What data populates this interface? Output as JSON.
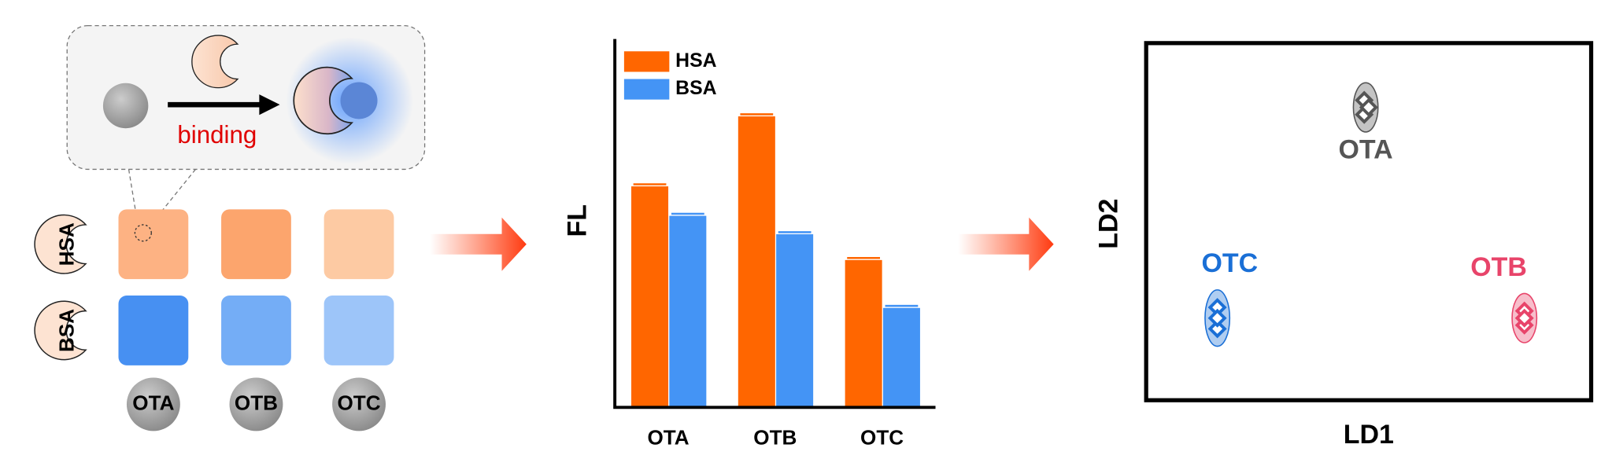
{
  "diagram": {
    "callout_label": "binding",
    "rows": [
      "HSA",
      "BSA"
    ],
    "columns": [
      "OTA",
      "OTB",
      "OTC"
    ]
  },
  "chart_data": [
    {
      "type": "bar",
      "ylabel": "FL",
      "categories": [
        "OTA",
        "OTB",
        "OTC"
      ],
      "ylim": [
        0,
        100
      ],
      "series": [
        {
          "name": "HSA",
          "color": "#ff6600",
          "values": [
            60,
            79,
            40
          ]
        },
        {
          "name": "BSA",
          "color": "#4494f5",
          "values": [
            52,
            47,
            27
          ]
        }
      ],
      "legend": "upper left"
    },
    {
      "type": "scatter",
      "xlabel": "LD1",
      "ylabel": "LD2",
      "xlim": [
        0,
        100
      ],
      "ylim": [
        0,
        100
      ],
      "series": [
        {
          "name": "OTA",
          "color": "#555555",
          "x": [
            49,
            49,
            50
          ],
          "y": [
            84,
            80,
            82
          ]
        },
        {
          "name": "OTB",
          "color": "#e8446a",
          "x": [
            85,
            85,
            85
          ],
          "y": [
            25,
            21,
            23
          ]
        },
        {
          "name": "OTC",
          "color": "#1a6fd6",
          "x": [
            16,
            16,
            16
          ],
          "y": [
            26,
            20,
            23
          ]
        }
      ]
    }
  ]
}
